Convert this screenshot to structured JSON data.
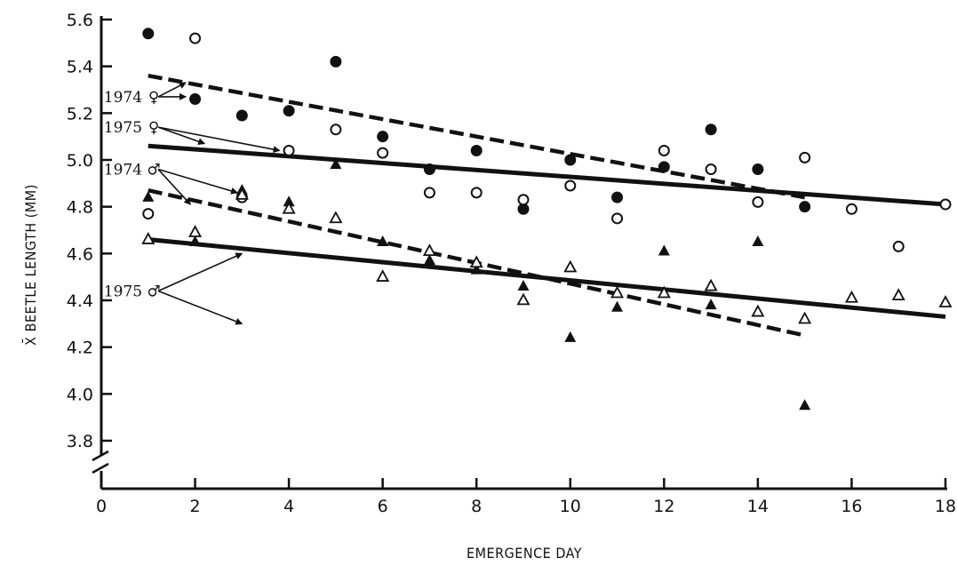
{
  "chart_data": {
    "type": "scatter",
    "title": "",
    "xlabel": "EMERGENCE DAY",
    "ylabel": "X̄ BEETLE LENGTH (MM)",
    "xlim": [
      0,
      18
    ],
    "ylim": [
      3.6,
      5.6
    ],
    "xticks": [
      0,
      2,
      4,
      6,
      8,
      10,
      12,
      14,
      16,
      18
    ],
    "xtick_labels": [
      "0",
      "2",
      "4",
      "6",
      "8",
      "10",
      "12",
      "14",
      "16",
      "18"
    ],
    "yticks": [
      3.8,
      4.0,
      4.2,
      4.4,
      4.6,
      4.8,
      5.0,
      5.2,
      5.4,
      5.6
    ],
    "ytick_labels": [
      "3.8",
      "4.0",
      "4.2",
      "4.4",
      "4.6",
      "4.8",
      "5.0",
      "5.2",
      "5.4",
      "5.6"
    ],
    "axis_break": "y",
    "grid": false,
    "series": [
      {
        "marker": "filled-circle",
        "points": [
          [
            1,
            5.54
          ],
          [
            2,
            5.26
          ],
          [
            3,
            5.19
          ],
          [
            4,
            5.21
          ],
          [
            5,
            5.42
          ],
          [
            6,
            5.1
          ],
          [
            7,
            4.96
          ],
          [
            8,
            5.04
          ],
          [
            9,
            4.79
          ],
          [
            10,
            5.0
          ],
          [
            11,
            4.84
          ],
          [
            12,
            4.97
          ],
          [
            13,
            5.13
          ],
          [
            14,
            4.96
          ],
          [
            15,
            4.8
          ]
        ]
      },
      {
        "marker": "open-circle",
        "points": [
          [
            1,
            4.77
          ],
          [
            2,
            5.52
          ],
          [
            3,
            4.84
          ],
          [
            4,
            5.04
          ],
          [
            5,
            5.13
          ],
          [
            6,
            5.03
          ],
          [
            7,
            4.86
          ],
          [
            8,
            4.86
          ],
          [
            9,
            4.83
          ],
          [
            10,
            4.89
          ],
          [
            11,
            4.75
          ],
          [
            12,
            5.04
          ],
          [
            13,
            4.96
          ],
          [
            14,
            4.82
          ],
          [
            15,
            5.01
          ],
          [
            16,
            4.79
          ],
          [
            17,
            4.63
          ],
          [
            18,
            4.81
          ]
        ]
      },
      {
        "marker": "filled-triangle",
        "points": [
          [
            1,
            4.84
          ],
          [
            2,
            4.65
          ],
          [
            3,
            4.87
          ],
          [
            4,
            4.82
          ],
          [
            5,
            4.98
          ],
          [
            6,
            4.65
          ],
          [
            7,
            4.57
          ],
          [
            8,
            4.53
          ],
          [
            9,
            4.46
          ],
          [
            10,
            4.24
          ],
          [
            11,
            4.37
          ],
          [
            12,
            4.61
          ],
          [
            13,
            4.38
          ],
          [
            14,
            4.65
          ],
          [
            15,
            3.95
          ]
        ]
      },
      {
        "marker": "open-triangle",
        "points": [
          [
            1,
            4.66
          ],
          [
            2,
            4.69
          ],
          [
            3,
            4.85
          ],
          [
            4,
            4.79
          ],
          [
            5,
            4.75
          ],
          [
            6,
            4.5
          ],
          [
            7,
            4.61
          ],
          [
            8,
            4.56
          ],
          [
            9,
            4.4
          ],
          [
            10,
            4.54
          ],
          [
            11,
            4.43
          ],
          [
            12,
            4.43
          ],
          [
            13,
            4.46
          ],
          [
            14,
            4.35
          ],
          [
            15,
            4.32
          ],
          [
            16,
            4.41
          ],
          [
            17,
            4.42
          ],
          [
            18,
            4.39
          ]
        ]
      }
    ],
    "regression_lines": [
      {
        "style": "dashed",
        "x": [
          1,
          15
        ],
        "y": [
          5.36,
          4.84
        ]
      },
      {
        "style": "solid",
        "x": [
          1,
          18
        ],
        "y": [
          5.06,
          4.81
        ]
      },
      {
        "style": "dashed",
        "x": [
          1,
          15
        ],
        "y": [
          4.87,
          4.25
        ]
      },
      {
        "style": "solid",
        "x": [
          1,
          18
        ],
        "y": [
          4.66,
          4.33
        ]
      }
    ],
    "annotations": [
      {
        "label": "1974",
        "sex_symbol": "♀",
        "anchor": [
          1.1,
          5.27
        ],
        "targets": [
          [
            1.8,
            5.27
          ],
          [
            1.8,
            5.33
          ]
        ]
      },
      {
        "label": "1975",
        "sex_symbol": "♀",
        "anchor": [
          1.1,
          5.14
        ],
        "targets": [
          [
            2.2,
            5.07
          ],
          [
            3.8,
            5.04
          ]
        ]
      },
      {
        "label": "1974",
        "sex_symbol": "♂",
        "anchor": [
          1.1,
          4.96
        ],
        "targets": [
          [
            1.9,
            4.81
          ],
          [
            2.9,
            4.86
          ]
        ]
      },
      {
        "label": "1975",
        "sex_symbol": "♂",
        "anchor": [
          1.1,
          4.44
        ],
        "targets": [
          [
            3.0,
            4.6
          ],
          [
            3.0,
            4.3
          ]
        ]
      }
    ]
  }
}
